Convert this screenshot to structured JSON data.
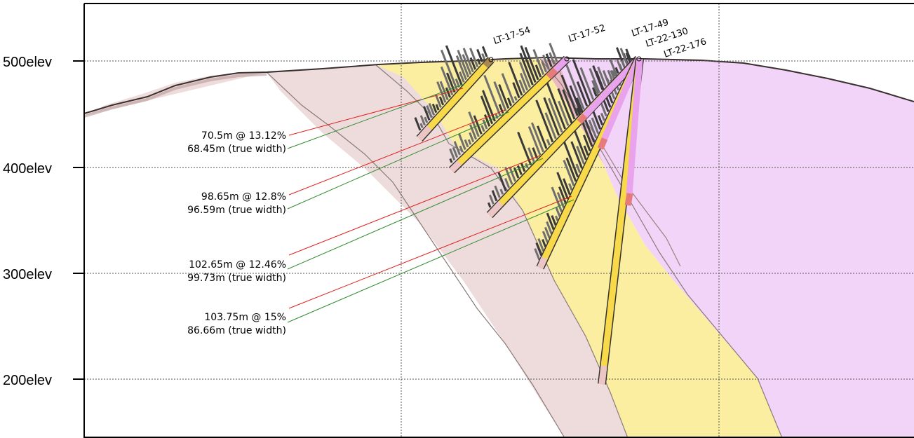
{
  "elevation_labels": [
    "500elev",
    "400elev",
    "300elev",
    "200elev"
  ],
  "drillholes": [
    "LT-17-54",
    "LT-17-52",
    "LT-17-49",
    "LT-22-130",
    "LT-22-176"
  ],
  "intercepts": [
    {
      "grade": "70.5m @ 13.12%",
      "true_width": "68.45m (true width)"
    },
    {
      "grade": "98.65m @ 12.8%",
      "true_width": "96.59m (true width)"
    },
    {
      "grade": "102.65m @ 12.46%",
      "true_width": "99.73m (true width)"
    },
    {
      "grade": "103.75m @ 15%",
      "true_width": "86.66m (true width)"
    }
  ],
  "colors": {
    "mineralized_zone": "#fbeea0",
    "host_rock_east": "#f2d4f8",
    "host_rock_west": "#eedcdc",
    "trace_yellow": "#f7d94a",
    "trace_magenta": "#e9a3ec",
    "grade_link": "#e0201c",
    "true_width_link": "#2e8b2e"
  }
}
